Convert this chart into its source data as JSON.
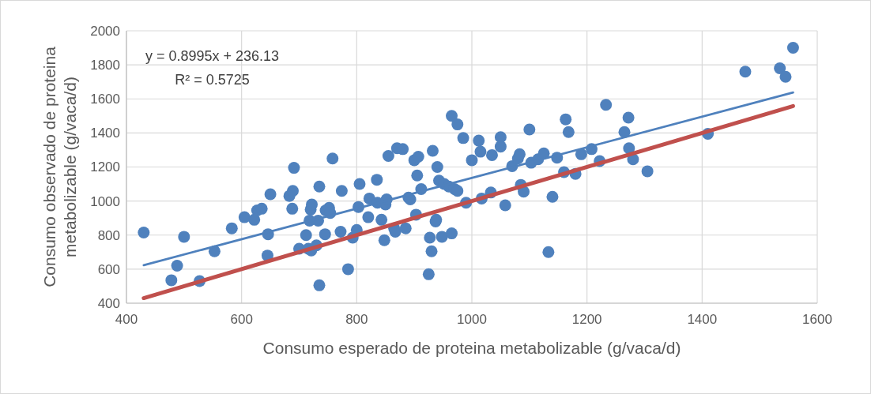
{
  "chart_data": {
    "type": "scatter",
    "xlabel": "Consumo esperado de proteina metabolizable (g/vaca/d)",
    "ylabel": "Consumo observado de proteina\nmetabolizable (g/vaca/d)",
    "annotations": [
      "y = 0.8995x + 236.13",
      "R² = 0.5725"
    ],
    "xlim": [
      400,
      1600
    ],
    "xticks": [
      400,
      600,
      800,
      1000,
      1200,
      1400,
      1600
    ],
    "ylim": [
      400,
      2000
    ],
    "yticks": [
      400,
      600,
      800,
      1000,
      1200,
      1400,
      1600,
      1800,
      2000
    ],
    "grid": true,
    "series": [
      {
        "type": "line",
        "color": "#c0504d",
        "x": [
          430,
          1558
        ],
        "values": [
          430,
          1558
        ]
      },
      {
        "type": "line",
        "color": "#4f81bd",
        "x": [
          430,
          1558
        ],
        "values": [
          623,
          1638
        ]
      },
      {
        "color": "#4f81bd",
        "marker": "circle",
        "x": [
          430,
          478,
          488,
          500,
          527,
          553,
          583,
          605,
          622,
          627,
          635,
          645,
          646,
          650,
          683,
          688,
          689,
          691,
          700,
          712,
          716,
          718,
          720,
          721,
          722,
          730,
          733,
          735,
          735,
          745,
          746,
          752,
          754,
          758,
          772,
          774,
          785,
          793,
          800,
          803,
          805,
          820,
          822,
          835,
          836,
          843,
          848,
          850,
          852,
          855,
          865,
          867,
          870,
          880,
          885,
          890,
          893,
          900,
          903,
          905,
          907,
          912,
          925,
          927,
          930,
          932,
          937,
          938,
          940,
          943,
          948,
          952,
          960,
          965,
          965,
          970,
          975,
          975,
          985,
          990,
          1000,
          1012,
          1015,
          1017,
          1033,
          1035,
          1050,
          1050,
          1058,
          1070,
          1080,
          1083,
          1085,
          1090,
          1100,
          1103,
          1115,
          1125,
          1133,
          1140,
          1148,
          1160,
          1163,
          1168,
          1180,
          1190,
          1208,
          1222,
          1233,
          1265,
          1272,
          1273,
          1280,
          1305,
          1410,
          1475,
          1535,
          1545,
          1558
        ],
        "values": [
          815,
          535,
          620,
          790,
          530,
          705,
          840,
          905,
          890,
          945,
          955,
          680,
          805,
          1040,
          1030,
          955,
          1060,
          1195,
          720,
          800,
          720,
          885,
          950,
          710,
          980,
          740,
          885,
          1085,
          505,
          805,
          945,
          960,
          930,
          1250,
          820,
          1060,
          600,
          785,
          830,
          965,
          1100,
          905,
          1015,
          1125,
          990,
          890,
          770,
          980,
          1010,
          1265,
          840,
          820,
          1310,
          1305,
          840,
          1020,
          1010,
          1240,
          920,
          1150,
          1260,
          1070,
          570,
          785,
          705,
          1295,
          880,
          890,
          1200,
          1120,
          790,
          1100,
          1085,
          1500,
          810,
          1070,
          1450,
          1060,
          1370,
          990,
          1240,
          1355,
          1290,
          1015,
          1050,
          1270,
          1375,
          1320,
          975,
          1205,
          1250,
          1275,
          1095,
          1055,
          1420,
          1225,
          1245,
          1280,
          700,
          1025,
          1255,
          1170,
          1480,
          1405,
          1160,
          1275,
          1305,
          1235,
          1565,
          1405,
          1490,
          1310,
          1245,
          1175,
          1395,
          1760,
          1780,
          1730,
          1900
        ]
      }
    ]
  }
}
